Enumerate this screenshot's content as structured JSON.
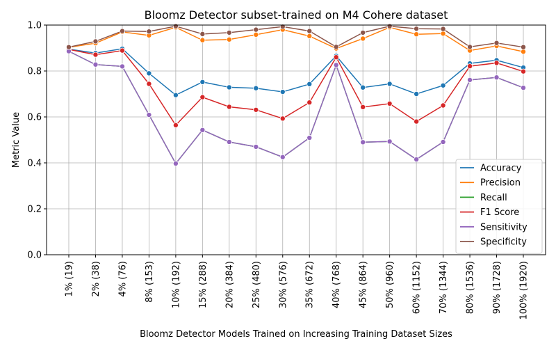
{
  "chart_data": {
    "type": "line",
    "title": "Bloomz Detector subset-trained on M4 Cohere dataset",
    "xlabel": "Bloomz Detector Models Trained on Increasing Training Dataset Sizes",
    "ylabel": "Metric Value",
    "ylim": [
      0.0,
      1.0
    ],
    "yticks": [
      "0.0",
      "0.2",
      "0.4",
      "0.6",
      "0.8",
      "1.0"
    ],
    "grid": true,
    "legend_position": "lower-right",
    "categories": [
      "1% (19)",
      "2% (38)",
      "4% (76)",
      "8% (153)",
      "10% (192)",
      "15% (288)",
      "20% (384)",
      "25% (480)",
      "30% (576)",
      "35% (672)",
      "40% (768)",
      "45% (864)",
      "50% (960)",
      "60% (1152)",
      "70% (1344)",
      "80% (1536)",
      "90% (1728)",
      "100% (1920)"
    ],
    "series": [
      {
        "name": "Accuracy",
        "color": "#1f77b4",
        "values": [
          0.895,
          0.878,
          0.897,
          0.79,
          0.695,
          0.752,
          0.729,
          0.725,
          0.709,
          0.743,
          0.866,
          0.728,
          0.744,
          0.7,
          0.737,
          0.833,
          0.847,
          0.815
        ]
      },
      {
        "name": "Precision",
        "color": "#ff7f0e",
        "values": [
          0.903,
          0.921,
          0.97,
          0.955,
          0.99,
          0.934,
          0.937,
          0.958,
          0.98,
          0.952,
          0.898,
          0.941,
          0.99,
          0.96,
          0.963,
          0.889,
          0.909,
          0.884
        ]
      },
      {
        "name": "Recall",
        "color": "#2ca02c",
        "values": [
          0.886,
          0.828,
          0.82,
          0.609,
          0.397,
          0.543,
          0.491,
          0.47,
          0.425,
          0.509,
          0.826,
          0.49,
          0.493,
          0.415,
          0.491,
          0.761,
          0.772,
          0.727
        ]
      },
      {
        "name": "F1 Score",
        "color": "#d62728",
        "values": [
          0.894,
          0.871,
          0.889,
          0.744,
          0.564,
          0.686,
          0.644,
          0.631,
          0.593,
          0.663,
          0.86,
          0.643,
          0.658,
          0.58,
          0.65,
          0.821,
          0.835,
          0.798
        ]
      },
      {
        "name": "Sensitivity",
        "color": "#9467bd",
        "values": [
          0.886,
          0.828,
          0.82,
          0.609,
          0.397,
          0.543,
          0.491,
          0.47,
          0.425,
          0.509,
          0.826,
          0.49,
          0.493,
          0.415,
          0.491,
          0.761,
          0.772,
          0.727
        ]
      },
      {
        "name": "Specificity",
        "color": "#8c564b",
        "values": [
          0.904,
          0.929,
          0.974,
          0.972,
          0.995,
          0.961,
          0.967,
          0.98,
          0.993,
          0.974,
          0.905,
          0.967,
          0.995,
          0.984,
          0.983,
          0.905,
          0.922,
          0.904
        ]
      }
    ]
  }
}
